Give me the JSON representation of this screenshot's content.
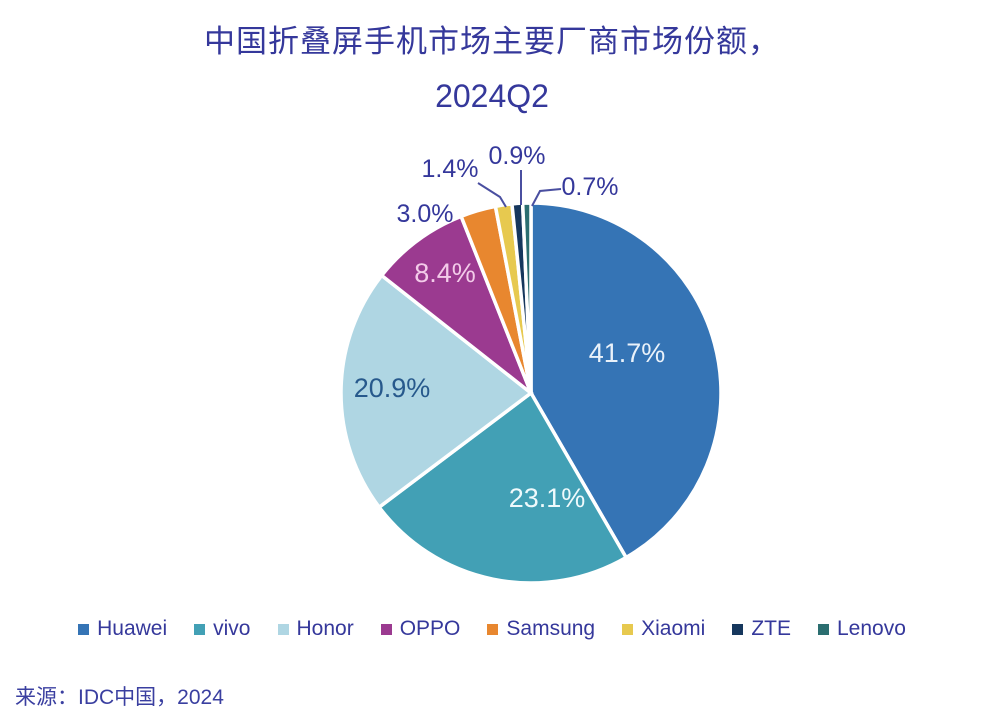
{
  "chart_data": {
    "type": "pie",
    "title_lines": [
      "中国折叠屏手机市场主要厂商市场份额，",
      "2024Q2"
    ],
    "title": "中国折叠屏手机市场主要厂商市场份额，2024Q2",
    "source": "来源：IDC中国，2024",
    "start_angle_deg": 0,
    "direction": "clockwise",
    "legend_position": "bottom",
    "label_format": "one-decimal-percent",
    "series": [
      {
        "name": "Huawei",
        "value": 41.7,
        "color": "#3574B5",
        "label_color": "#EAF2FA"
      },
      {
        "name": "vivo",
        "value": 23.1,
        "color": "#42A0B5",
        "label_color": "#EFFAFC"
      },
      {
        "name": "Honor",
        "value": 20.9,
        "color": "#AFD6E3",
        "label_color": "#27598C"
      },
      {
        "name": "OPPO",
        "value": 8.4,
        "color": "#9B3A90",
        "label_color": "#F3CBE9"
      },
      {
        "name": "Samsung",
        "value": 3.0,
        "color": "#E8872F",
        "label_color": "#35389B"
      },
      {
        "name": "Xiaomi",
        "value": 1.4,
        "color": "#E7C94F",
        "label_color": "#35389B"
      },
      {
        "name": "ZTE",
        "value": 0.9,
        "color": "#16375D",
        "label_color": "#35389B"
      },
      {
        "name": "Lenovo",
        "value": 0.7,
        "color": "#2B6E70",
        "label_color": "#35389B"
      }
    ],
    "colors": {
      "background": "#FFFFFF",
      "title_text": "#35389B",
      "legend_text": "#35389B",
      "source_text": "#3A3FA0",
      "slice_separator": "#FFFFFF"
    }
  }
}
